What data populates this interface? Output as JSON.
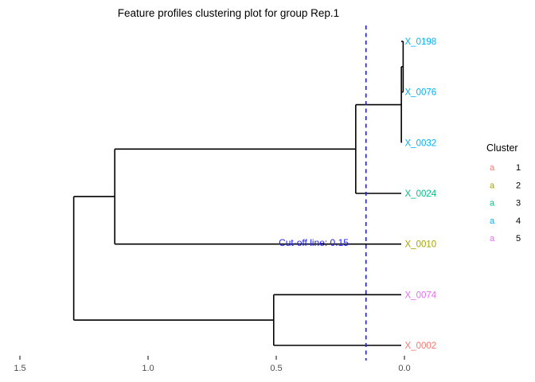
{
  "chart_data": {
    "type": "dendrogram",
    "title": "Feature profiles clustering plot for group Rep.1",
    "orientation": "horizontal",
    "axis": {
      "ticks": [
        "1.5",
        "1.0",
        "0.5",
        "0.0"
      ],
      "tick_values": [
        1.5,
        1.0,
        0.5,
        0.0
      ],
      "range": [
        1.5,
        0.0
      ]
    },
    "leaves": [
      {
        "id": "X_0198",
        "cluster": 4
      },
      {
        "id": "X_0076",
        "cluster": 4
      },
      {
        "id": "X_0032",
        "cluster": 4
      },
      {
        "id": "X_0024",
        "cluster": 3
      },
      {
        "id": "X_0010",
        "cluster": 2
      },
      {
        "id": "X_0074",
        "cluster": 5
      },
      {
        "id": "X_0002",
        "cluster": 1
      }
    ],
    "merges": [
      {
        "a": 0,
        "b": 1,
        "height": 0.005
      },
      {
        "a": 7,
        "b": 2,
        "height": 0.012
      },
      {
        "a": 8,
        "b": 3,
        "height": 0.19
      },
      {
        "a": 9,
        "b": 4,
        "height": 1.13
      },
      {
        "a": 5,
        "b": 6,
        "height": 0.51
      },
      {
        "a": 10,
        "b": 11,
        "height": 1.29
      }
    ],
    "cutoff": {
      "value": 0.15,
      "label": "Cut-off line: 0.15"
    },
    "legend": {
      "title": "Cluster",
      "key_glyph": "a",
      "entries": [
        {
          "label": "1",
          "color": "#F8766D"
        },
        {
          "label": "2",
          "color": "#A3A500"
        },
        {
          "label": "3",
          "color": "#00BF7D"
        },
        {
          "label": "4",
          "color": "#00B0F6"
        },
        {
          "label": "5",
          "color": "#E76BF3"
        }
      ]
    },
    "colors": {
      "branch_line": "#000000",
      "cutoff_line": "#2121F0",
      "cutoff_text": "#2121F0",
      "axis_text": "#4D4D4D",
      "tick_mark": "#333333"
    }
  }
}
